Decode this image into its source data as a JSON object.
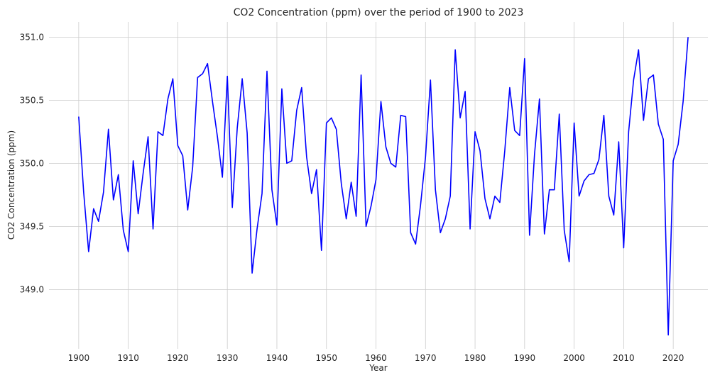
{
  "chart_data": {
    "type": "line",
    "title": "CO2 Concentration (ppm) over the period of 1900 to 2023",
    "xlabel": "Year",
    "ylabel": "CO2 Concentration (ppm)",
    "xlim": [
      1894,
      2027
    ],
    "ylim": [
      348.53,
      351.12
    ],
    "xticks": [
      1900,
      1910,
      1920,
      1930,
      1940,
      1950,
      1960,
      1970,
      1980,
      1990,
      2000,
      2010,
      2020
    ],
    "yticks": [
      349.0,
      349.5,
      350.0,
      350.5,
      351.0
    ],
    "grid": true,
    "series": [
      {
        "color": "#0000ff",
        "x": [
          1900,
          1901,
          1902,
          1903,
          1904,
          1905,
          1906,
          1907,
          1908,
          1909,
          1910,
          1911,
          1912,
          1913,
          1914,
          1915,
          1916,
          1917,
          1918,
          1919,
          1920,
          1921,
          1922,
          1923,
          1924,
          1925,
          1926,
          1927,
          1928,
          1929,
          1930,
          1931,
          1932,
          1933,
          1934,
          1935,
          1936,
          1937,
          1938,
          1939,
          1940,
          1941,
          1942,
          1943,
          1944,
          1945,
          1946,
          1947,
          1948,
          1949,
          1950,
          1951,
          1952,
          1953,
          1954,
          1955,
          1956,
          1957,
          1958,
          1959,
          1960,
          1961,
          1962,
          1963,
          1964,
          1965,
          1966,
          1967,
          1968,
          1969,
          1970,
          1971,
          1972,
          1973,
          1974,
          1975,
          1976,
          1977,
          1978,
          1979,
          1980,
          1981,
          1982,
          1983,
          1984,
          1985,
          1986,
          1987,
          1988,
          1989,
          1990,
          1991,
          1992,
          1993,
          1994,
          1995,
          1996,
          1997,
          1998,
          1999,
          2000,
          2001,
          2002,
          2003,
          2004,
          2005,
          2006,
          2007,
          2008,
          2009,
          2010,
          2011,
          2012,
          2013,
          2014,
          2015,
          2016,
          2017,
          2018,
          2019,
          2020,
          2021,
          2022,
          2023
        ],
        "values": [
          350.37,
          349.77,
          349.3,
          349.64,
          349.54,
          349.77,
          350.27,
          349.71,
          349.91,
          349.47,
          349.3,
          350.02,
          349.6,
          349.92,
          350.21,
          349.48,
          350.25,
          350.22,
          350.51,
          350.67,
          350.14,
          350.06,
          349.63,
          349.97,
          350.68,
          350.71,
          350.79,
          350.49,
          350.21,
          349.89,
          350.69,
          349.65,
          350.28,
          350.67,
          350.24,
          349.13,
          349.48,
          349.76,
          350.73,
          349.79,
          349.51,
          350.59,
          350.0,
          350.02,
          350.42,
          350.6,
          350.05,
          349.76,
          349.95,
          349.31,
          350.32,
          350.36,
          350.27,
          349.84,
          349.56,
          349.85,
          349.58,
          350.7,
          349.5,
          349.66,
          349.87,
          350.49,
          350.13,
          350.0,
          349.97,
          350.38,
          350.37,
          349.45,
          349.36,
          349.67,
          350.05,
          350.66,
          349.79,
          349.45,
          349.56,
          349.74,
          350.9,
          350.36,
          350.57,
          349.48,
          350.25,
          350.1,
          349.72,
          349.56,
          349.74,
          349.69,
          350.1,
          350.6,
          350.26,
          350.22,
          350.83,
          349.43,
          350.07,
          350.51,
          349.44,
          349.79,
          349.79,
          350.39,
          349.47,
          349.22,
          350.32,
          349.74,
          349.86,
          349.91,
          349.92,
          350.03,
          350.38,
          349.74,
          349.59,
          350.17,
          349.33,
          350.25,
          350.66,
          350.9,
          350.34,
          350.67,
          350.7,
          350.31,
          350.19,
          348.64,
          350.02,
          350.15,
          350.49,
          351.0
        ]
      }
    ]
  }
}
